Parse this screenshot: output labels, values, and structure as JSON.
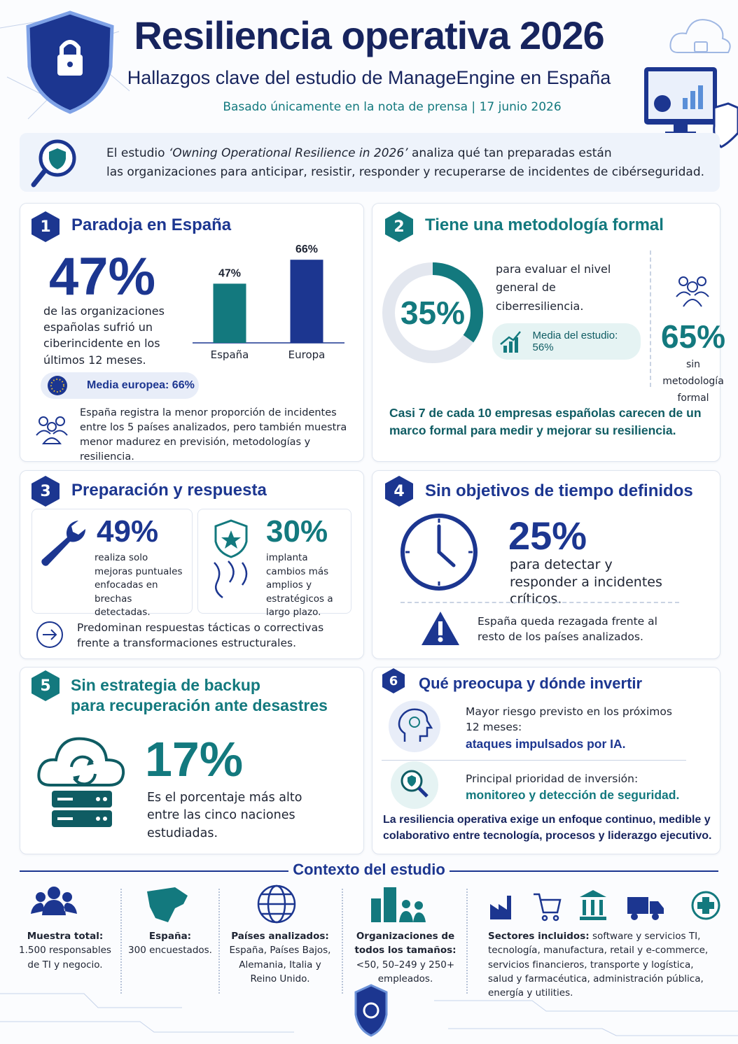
{
  "header": {
    "title": "Resiliencia operativa 2026",
    "subtitle": "Hallazgos clave del estudio de ManageEngine en España",
    "source": "Basado únicamente en la nota de prensa | 17 junio 2026"
  },
  "intro": {
    "lead": "El estudio",
    "study": "‘Owning Operational Resilience in 2026’",
    "line1_rest": "analiza qué tan preparadas están",
    "line2": "las organizaciones para anticipar, resistir, responder y recuperarse de incidentes de cibérseguridad."
  },
  "sections": [
    {
      "number": "1",
      "title": "Paradoja en España",
      "stat": "47%",
      "stat_text": "de las organizaciones españolas sufrió un ciberincidente en los últimos 12 meses.",
      "chart": {
        "type": "bar",
        "categories": [
          "España",
          "Europa"
        ],
        "values": [
          47,
          66
        ],
        "value_labels": [
          "47%",
          "66%"
        ],
        "colors": [
          "#13797e",
          "#1c3690"
        ]
      },
      "badge": "Media europea: 66%",
      "note": "España registra la menor proporción de incidentes entre los 5 países analizados, pero también muestra menor madurez en previsión, metodologías y resiliencia."
    },
    {
      "number": "2",
      "title": "Tiene una metodología formal",
      "donut": {
        "type": "donut",
        "value": 35,
        "label": "35%",
        "color": "#13797e"
      },
      "desc": "para evaluar el nivel general de ciberresiliencia.",
      "badge": "Media del estudio: 56%",
      "side_stat": "65%",
      "side_text": "sin metodología formal",
      "note": "Casi 7 de cada 10 empresas españolas carecen de un marco formal para medir y mejorar su resiliencia."
    },
    {
      "number": "3",
      "title": "Preparación y respuesta",
      "cards": [
        {
          "stat": "49%",
          "text": "realiza solo mejoras puntuales enfocadas en brechas detectadas."
        },
        {
          "stat": "30%",
          "text": "implanta cambios más amplios y estratégicos a largo plazo."
        }
      ],
      "note": "Predominan respuestas tácticas o correctivas frente a transformaciones estructurales."
    },
    {
      "number": "4",
      "title": "Sin objetivos de tiempo definidos",
      "stat": "25%",
      "stat_text": "para detectar y responder a incidentes críticos.",
      "note": "España queda rezagada frente al resto de los países analizados."
    },
    {
      "number": "5",
      "title_lines": [
        "Sin estrategia de backup",
        "para recuperación ante desastres"
      ],
      "stat": "17%",
      "stat_text": "Es el porcentaje más alto entre las cinco naciones estudiadas."
    },
    {
      "number": "6",
      "title": "Qué preocupa y dónde invertir",
      "items": [
        {
          "text": "Mayor riesgo previsto en los próximos 12 meses:",
          "highlight": "ataques impulsados por IA."
        },
        {
          "text": "Principal prioridad de inversión:",
          "highlight": "monitoreo y detección de seguridad."
        }
      ],
      "note": "La resiliencia operativa exige un enfoque continuo, medible y colaborativo entre tecnología, procesos y liderazgo ejecutivo."
    }
  ],
  "context": {
    "title": "Contexto del estudio",
    "items": [
      {
        "label": "Muestra total:",
        "text": "1.500 responsables de TI y negocio."
      },
      {
        "label": "España:",
        "text": "300 encuestados."
      },
      {
        "label": "Países analizados:",
        "text": "España, Países Bajos, Alemania, Italia y Reino Unido."
      },
      {
        "label": "Organizaciones de todos los tamaños:",
        "text": "<50, 50–249 y 250+ empleados."
      },
      {
        "label": "Sectores incluidos:",
        "text": "software y servicios TI, tecnología, manufactura, retail y e-commerce, servicios financieros, transporte y logística, salud y farmacéutica, administración pública, energía y utilities."
      }
    ]
  }
}
